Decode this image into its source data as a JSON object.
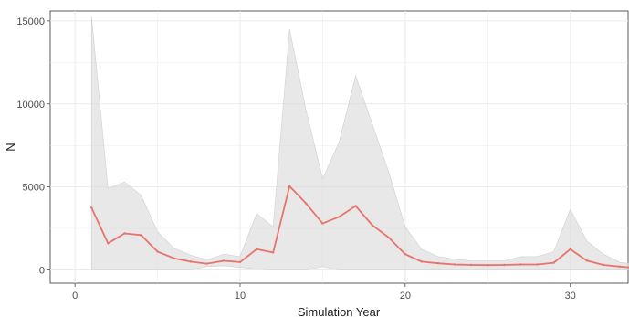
{
  "chart_data": {
    "type": "area",
    "xlabel": "Simulation Year",
    "ylabel": "N",
    "xlim": [
      -1.5,
      33.5
    ],
    "ylim": [
      -800,
      15600
    ],
    "x_ticks": [
      0,
      10,
      20,
      30
    ],
    "y_ticks": [
      0,
      5000,
      10000,
      15000
    ],
    "x_tick_labels": [
      "0",
      "10",
      "20",
      "30"
    ],
    "y_tick_labels": [
      "0",
      "5000",
      "10000",
      "15000"
    ],
    "grid": true,
    "legend": "none",
    "colors": {
      "line": "#e8736c",
      "band": "#d9d9d9",
      "grid": "#ebebeb",
      "axis": "#4d4d4d"
    },
    "x": [
      1,
      2,
      3,
      4,
      5,
      6,
      7,
      8,
      9,
      10,
      11,
      12,
      13,
      14,
      15,
      16,
      17,
      18,
      19,
      20,
      21,
      22,
      23,
      24,
      25,
      26,
      27,
      28,
      29,
      30,
      31,
      32,
      33,
      33.5
    ],
    "series": [
      {
        "role": "median",
        "values": [
          3750,
          1600,
          2200,
          2100,
          1100,
          700,
          500,
          380,
          550,
          470,
          1250,
          1050,
          5050,
          4000,
          2800,
          3200,
          3850,
          2700,
          1950,
          950,
          500,
          400,
          330,
          300,
          290,
          300,
          330,
          330,
          430,
          1250,
          560,
          300,
          200,
          160
        ]
      },
      {
        "role": "upper",
        "values": [
          15300,
          4900,
          5300,
          4500,
          2300,
          1300,
          900,
          600,
          950,
          800,
          3400,
          2600,
          14500,
          9600,
          5500,
          7700,
          11700,
          8800,
          5900,
          2600,
          1250,
          800,
          650,
          550,
          550,
          550,
          800,
          800,
          1100,
          3650,
          1750,
          950,
          450,
          400
        ]
      },
      {
        "role": "lower",
        "values": [
          0,
          0,
          0,
          0,
          0,
          0,
          0,
          200,
          250,
          150,
          50,
          0,
          0,
          0,
          200,
          0,
          0,
          0,
          0,
          0,
          0,
          0,
          0,
          0,
          0,
          0,
          0,
          0,
          0,
          0,
          0,
          0,
          0,
          0
        ]
      }
    ]
  }
}
